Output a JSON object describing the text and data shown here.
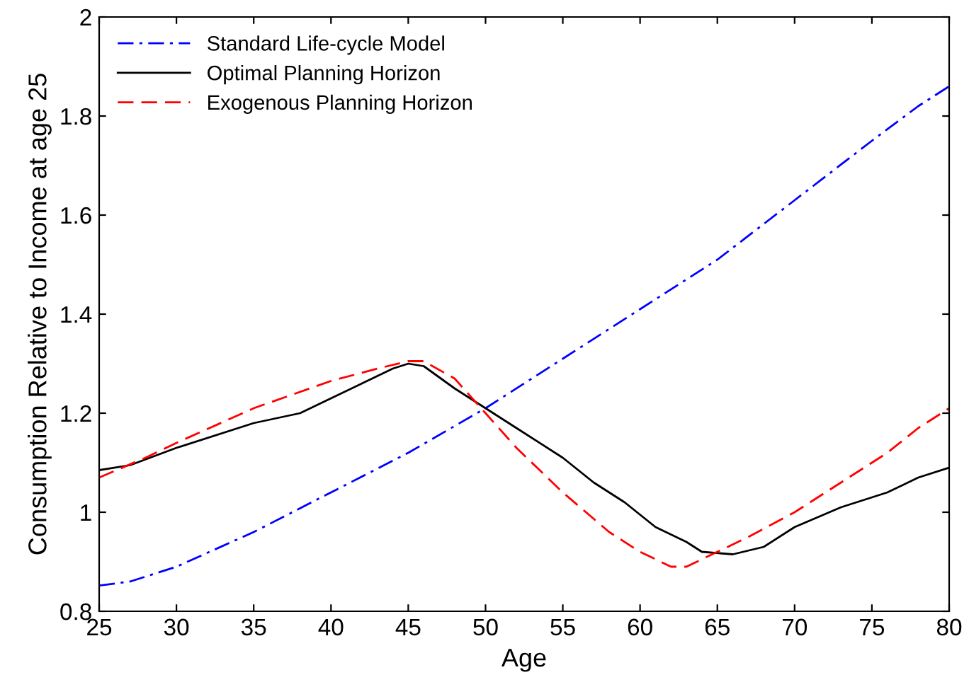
{
  "chart_data": {
    "type": "line",
    "xlabel": "Age",
    "ylabel": "Consumption Relative to Income at age 25",
    "xlim": [
      25,
      80
    ],
    "xticks": [
      25,
      30,
      35,
      40,
      45,
      50,
      55,
      60,
      65,
      70,
      75,
      80
    ],
    "ylim": [
      0.8,
      2
    ],
    "yticks": [
      0.8,
      1,
      1.2,
      1.4,
      1.6,
      1.8,
      2
    ],
    "grid": false,
    "legend": "top left",
    "marker": "none",
    "series": [
      {
        "name": "Standard Life-cycle Model",
        "color": "#0000ff",
        "line_style": "dashdot",
        "x": [
          25,
          27,
          30,
          35,
          40,
          45,
          50,
          55,
          60,
          65,
          70,
          75,
          78,
          80
        ],
        "values": [
          0.852,
          0.86,
          0.89,
          0.96,
          1.04,
          1.12,
          1.21,
          1.31,
          1.41,
          1.51,
          1.63,
          1.75,
          1.82,
          1.86
        ]
      },
      {
        "name": "Optimal Planning Horizon",
        "color": "#000000",
        "line_style": "solid",
        "x": [
          25,
          27,
          30,
          35,
          38,
          40,
          42,
          44,
          45,
          46,
          48,
          50,
          52,
          55,
          57,
          59,
          61,
          63,
          64,
          66,
          68,
          70,
          73,
          76,
          78,
          80
        ],
        "values": [
          1.085,
          1.095,
          1.13,
          1.18,
          1.2,
          1.23,
          1.26,
          1.29,
          1.3,
          1.295,
          1.25,
          1.21,
          1.17,
          1.11,
          1.06,
          1.02,
          0.97,
          0.94,
          0.92,
          0.915,
          0.93,
          0.97,
          1.01,
          1.04,
          1.07,
          1.09
        ]
      },
      {
        "name": "Exogenous Planning Horizon",
        "color": "#ff0000",
        "line_style": "dashed",
        "x": [
          25,
          28,
          30,
          35,
          40,
          43,
          45,
          46,
          48,
          50,
          52,
          55,
          58,
          60,
          62,
          63,
          65,
          67,
          70,
          73,
          76,
          78,
          80
        ],
        "values": [
          1.07,
          1.11,
          1.14,
          1.21,
          1.265,
          1.29,
          1.305,
          1.305,
          1.27,
          1.2,
          1.13,
          1.04,
          0.96,
          0.92,
          0.89,
          0.89,
          0.92,
          0.95,
          1.0,
          1.06,
          1.12,
          1.17,
          1.21
        ]
      }
    ]
  }
}
